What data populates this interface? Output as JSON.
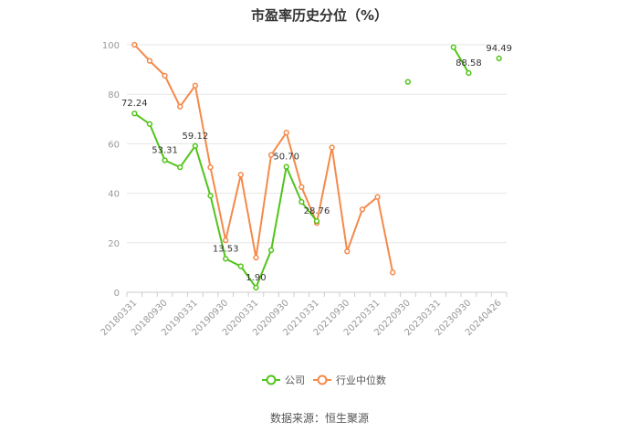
{
  "chart_data": {
    "type": "line",
    "title": "市盈率历史分位（%）",
    "source": "数据来源：恒生聚源",
    "x_labels": [
      "20180331",
      "20180930",
      "20190331",
      "20190930",
      "20200331",
      "20200930",
      "20210331",
      "20210930",
      "20220331",
      "20220930",
      "20230331",
      "20230930",
      "20240426"
    ],
    "x": [
      "20180331",
      "20180630",
      "20180930",
      "20181231",
      "20190331",
      "20190630",
      "20190930",
      "20191231",
      "20200331",
      "20200630",
      "20200930",
      "20201231",
      "20210331",
      "20210630",
      "20210930",
      "20211231",
      "20220331",
      "20220630",
      "20220930",
      "20221231",
      "20230331",
      "20230630",
      "20230930",
      "20231231",
      "20240426"
    ],
    "y_ticks": [
      "0",
      "20",
      "40",
      "60",
      "80",
      "100"
    ],
    "ylim": [
      0,
      100
    ],
    "legend_position": "bottom-center",
    "grid": true,
    "series": [
      {
        "name": "公司",
        "color": "#52c41a",
        "values": [
          72.24,
          68,
          53.31,
          50.5,
          59.12,
          39,
          13.53,
          10.5,
          1.9,
          17,
          50.7,
          36.5,
          28.76,
          null,
          null,
          null,
          null,
          null,
          85,
          null,
          null,
          99,
          88.58,
          null,
          94.49
        ],
        "labels": {
          "0": "72.24",
          "2": "53.31",
          "4": "59.12",
          "6": "13.53",
          "8": "1.90",
          "10": "50.70",
          "12": "28.76",
          "22": "88.58",
          "24": "94.49"
        }
      },
      {
        "name": "行业中位数",
        "color": "#f5894a",
        "values": [
          100,
          93.5,
          87.5,
          75,
          83.5,
          50.5,
          21,
          47.5,
          14,
          55.5,
          64.5,
          42.5,
          28,
          58.5,
          16.5,
          33.5,
          38.5,
          8,
          null,
          null,
          null,
          null,
          null,
          null,
          null
        ]
      }
    ]
  }
}
